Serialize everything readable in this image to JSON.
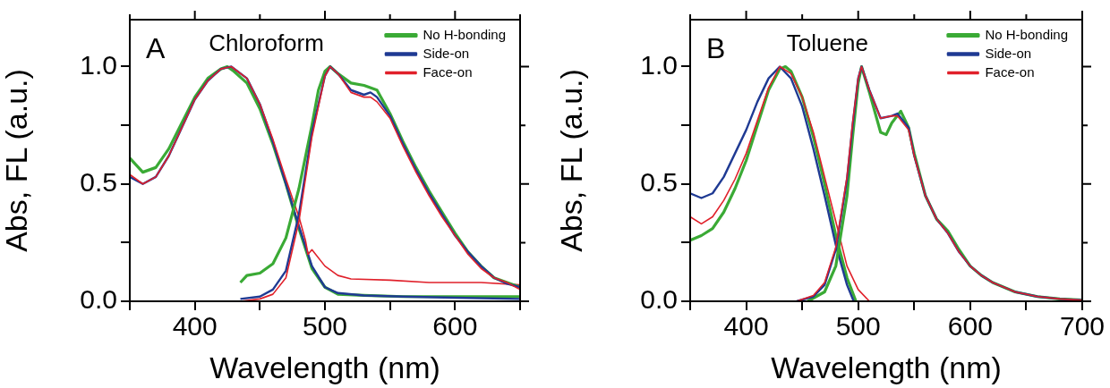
{
  "chart_data": [
    {
      "type": "line",
      "title": "Chloroform",
      "annotations": [
        "A"
      ],
      "xlabel": "Wavelength (nm)",
      "ylabel": "Abs, FL (a.u.)",
      "xlim": [
        350,
        650
      ],
      "xticks": [
        {
          "value": 350,
          "label": null
        },
        400,
        {
          "value": 450,
          "label": null
        },
        500,
        {
          "value": 550,
          "label": null
        },
        600,
        {
          "value": 650,
          "label": null
        }
      ],
      "ylim": [
        0,
        1.2
      ],
      "yticks": [
        {
          "value": 0,
          "label": "0.0"
        },
        {
          "value": 0.25,
          "label": null
        },
        {
          "value": 0.5,
          "label": "0.5"
        },
        {
          "value": 0.75,
          "label": null
        },
        {
          "value": 1,
          "label": "1.0"
        }
      ],
      "legend": "top right",
      "series": [
        {
          "name": "No H-bonding",
          "color": "#3aaa35",
          "x": [
            350,
            360,
            370,
            380,
            390,
            400,
            410,
            420,
            425,
            430,
            440,
            450,
            460,
            470,
            480,
            490,
            500,
            510,
            530,
            560,
            600,
            650
          ],
          "values": [
            0.61,
            0.55,
            0.57,
            0.65,
            0.76,
            0.87,
            0.95,
            0.99,
            1.0,
            0.98,
            0.93,
            0.82,
            0.67,
            0.5,
            0.31,
            0.14,
            0.06,
            0.03,
            0.025,
            0.02,
            0.02,
            0.02
          ]
        },
        {
          "name": "Side-on",
          "color": "#1f3a93",
          "x": [
            350,
            360,
            370,
            380,
            390,
            400,
            410,
            420,
            428,
            440,
            450,
            460,
            470,
            480,
            490,
            500,
            510,
            530,
            560,
            600,
            650
          ],
          "values": [
            0.53,
            0.5,
            0.53,
            0.62,
            0.74,
            0.86,
            0.94,
            0.99,
            1.0,
            0.95,
            0.84,
            0.68,
            0.5,
            0.32,
            0.15,
            0.06,
            0.035,
            0.025,
            0.02,
            0.015,
            0.01
          ]
        },
        {
          "name": "Face-on",
          "color": "#e0202a",
          "x": [
            350,
            360,
            370,
            380,
            390,
            400,
            410,
            420,
            428,
            440,
            450,
            460,
            470,
            480,
            485,
            487,
            490,
            500,
            510,
            520,
            550,
            580,
            600,
            620,
            650
          ],
          "values": [
            0.54,
            0.5,
            0.53,
            0.62,
            0.74,
            0.86,
            0.94,
            0.99,
            1.0,
            0.95,
            0.84,
            0.69,
            0.52,
            0.36,
            0.26,
            0.2,
            0.22,
            0.15,
            0.11,
            0.095,
            0.09,
            0.08,
            0.08,
            0.08,
            0.07
          ]
        },
        {
          "color": "#3aaa35",
          "x": [
            435,
            440,
            450,
            460,
            470,
            480,
            490,
            495,
            500,
            504,
            510,
            520,
            530,
            540,
            550,
            560,
            570,
            580,
            590,
            600,
            610,
            620,
            630,
            640,
            650
          ],
          "values": [
            0.08,
            0.11,
            0.12,
            0.16,
            0.27,
            0.48,
            0.75,
            0.9,
            0.98,
            1.0,
            0.97,
            0.93,
            0.92,
            0.9,
            0.8,
            0.68,
            0.57,
            0.47,
            0.38,
            0.29,
            0.21,
            0.15,
            0.1,
            0.08,
            0.06
          ]
        },
        {
          "color": "#1f3a93",
          "x": [
            435,
            450,
            460,
            470,
            480,
            490,
            500,
            504,
            510,
            520,
            530,
            535,
            540,
            550,
            560,
            570,
            580,
            590,
            600,
            610,
            620,
            630,
            640,
            650
          ],
          "values": [
            0.01,
            0.02,
            0.05,
            0.13,
            0.37,
            0.72,
            0.96,
            1.0,
            0.97,
            0.9,
            0.88,
            0.89,
            0.87,
            0.79,
            0.67,
            0.56,
            0.46,
            0.37,
            0.28,
            0.21,
            0.15,
            0.1,
            0.075,
            0.06
          ]
        },
        {
          "color": "#e0202a",
          "x": [
            435,
            450,
            460,
            470,
            480,
            490,
            500,
            504,
            510,
            520,
            530,
            535,
            540,
            550,
            560,
            570,
            580,
            590,
            600,
            610,
            620,
            630,
            640,
            650
          ],
          "values": [
            0.0,
            0.01,
            0.03,
            0.1,
            0.34,
            0.7,
            0.96,
            1.0,
            0.97,
            0.89,
            0.87,
            0.87,
            0.85,
            0.78,
            0.66,
            0.55,
            0.45,
            0.36,
            0.28,
            0.2,
            0.14,
            0.1,
            0.08,
            0.05
          ]
        }
      ]
    },
    {
      "type": "line",
      "title": "Toluene",
      "annotations": [
        "B"
      ],
      "xlabel": "Wavelength (nm)",
      "ylabel": "Abs, FL (a.u.)",
      "xlim": [
        350,
        700
      ],
      "xticks": [
        {
          "value": 350,
          "label": null
        },
        400,
        {
          "value": 450,
          "label": null
        },
        500,
        {
          "value": 550,
          "label": null
        },
        600,
        {
          "value": 650,
          "label": null
        },
        700
      ],
      "ylim": [
        0,
        1.2
      ],
      "yticks": [
        {
          "value": 0,
          "label": "0.0"
        },
        {
          "value": 0.25,
          "label": null
        },
        {
          "value": 0.5,
          "label": "0.5"
        },
        {
          "value": 0.75,
          "label": null
        },
        {
          "value": 1,
          "label": "1.0"
        }
      ],
      "legend": "top right",
      "series": [
        {
          "name": "No H-bonding",
          "color": "#3aaa35",
          "x": [
            350,
            360,
            370,
            380,
            390,
            400,
            410,
            420,
            430,
            435,
            440,
            450,
            460,
            470,
            480,
            490,
            498
          ],
          "values": [
            0.26,
            0.28,
            0.31,
            0.38,
            0.48,
            0.6,
            0.75,
            0.9,
            0.99,
            1.0,
            0.98,
            0.87,
            0.7,
            0.5,
            0.28,
            0.1,
            0.0
          ]
        },
        {
          "name": "Side-on",
          "color": "#1f3a93",
          "x": [
            350,
            360,
            370,
            380,
            390,
            400,
            410,
            420,
            430,
            440,
            450,
            460,
            470,
            480,
            490,
            496
          ],
          "values": [
            0.46,
            0.44,
            0.46,
            0.53,
            0.63,
            0.73,
            0.85,
            0.95,
            1.0,
            0.95,
            0.83,
            0.65,
            0.45,
            0.24,
            0.07,
            0.0
          ]
        },
        {
          "name": "Face-on",
          "color": "#e0202a",
          "x": [
            350,
            360,
            370,
            380,
            390,
            400,
            410,
            420,
            430,
            440,
            450,
            460,
            470,
            480,
            490,
            500,
            510
          ],
          "values": [
            0.36,
            0.33,
            0.36,
            0.43,
            0.52,
            0.63,
            0.77,
            0.91,
            1.0,
            0.97,
            0.87,
            0.72,
            0.53,
            0.34,
            0.15,
            0.05,
            0.0
          ]
        },
        {
          "color": "#3aaa35",
          "x": [
            455,
            470,
            480,
            490,
            495,
            500,
            503,
            510,
            520,
            525,
            530,
            538,
            545,
            550,
            560,
            570,
            580,
            590,
            600,
            610,
            620,
            640,
            660,
            680,
            700
          ],
          "values": [
            0.0,
            0.04,
            0.15,
            0.45,
            0.7,
            0.93,
            1.0,
            0.89,
            0.72,
            0.71,
            0.76,
            0.81,
            0.74,
            0.63,
            0.45,
            0.35,
            0.3,
            0.22,
            0.15,
            0.11,
            0.08,
            0.04,
            0.02,
            0.01,
            0.005
          ]
        },
        {
          "color": "#1f3a93",
          "x": [
            445,
            460,
            470,
            480,
            490,
            495,
            500,
            503,
            510,
            520,
            530,
            535,
            545,
            550,
            560,
            570,
            580,
            590,
            600,
            610,
            620,
            640,
            660,
            680,
            700
          ],
          "values": [
            0.0,
            0.02,
            0.07,
            0.22,
            0.52,
            0.75,
            0.95,
            1.0,
            0.9,
            0.78,
            0.79,
            0.8,
            0.74,
            0.62,
            0.45,
            0.35,
            0.29,
            0.21,
            0.15,
            0.11,
            0.08,
            0.04,
            0.02,
            0.01,
            0.005
          ]
        },
        {
          "color": "#e0202a",
          "x": [
            445,
            460,
            470,
            480,
            490,
            495,
            500,
            503,
            510,
            520,
            530,
            535,
            545,
            550,
            560,
            570,
            580,
            590,
            600,
            610,
            620,
            640,
            660,
            680,
            700
          ],
          "values": [
            0.0,
            0.025,
            0.08,
            0.23,
            0.53,
            0.76,
            0.95,
            1.0,
            0.9,
            0.78,
            0.79,
            0.79,
            0.73,
            0.62,
            0.45,
            0.35,
            0.29,
            0.21,
            0.15,
            0.11,
            0.08,
            0.04,
            0.02,
            0.01,
            0.005
          ]
        }
      ]
    }
  ]
}
